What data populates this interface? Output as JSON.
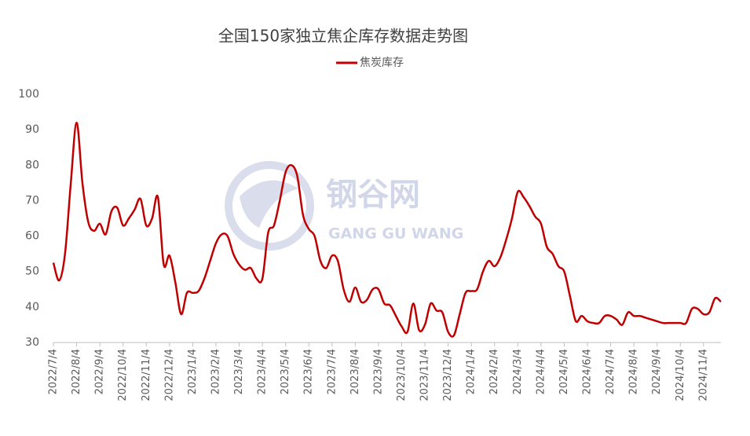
{
  "chart_data": {
    "type": "line",
    "title": "全国150家独立焦企库存数据走势图",
    "watermark": {
      "name": "钢谷网",
      "sub": "GANG GU WANG"
    },
    "categories": [
      "2022/7/4",
      null,
      null,
      null,
      "2022/8/4",
      null,
      null,
      null,
      "2022/9/4",
      null,
      null,
      null,
      "2022/10/4",
      null,
      null,
      null,
      "2022/11/4",
      null,
      null,
      null,
      "2022/12/4",
      null,
      null,
      null,
      "2023/1/4",
      null,
      null,
      null,
      "2023/2/4",
      null,
      null,
      null,
      "2023/3/4",
      null,
      null,
      null,
      "2023/4/4",
      null,
      null,
      null,
      "2023/5/4",
      null,
      null,
      null,
      "2023/6/4",
      null,
      null,
      null,
      "2023/7/4",
      null,
      null,
      null,
      "2023/8/4",
      null,
      null,
      null,
      "2023/9/4",
      null,
      null,
      null,
      "2023/10/4",
      null,
      null,
      null,
      "2023/11/4",
      null,
      null,
      null,
      "2023/12/4",
      null,
      null,
      null,
      "2024/1/4",
      null,
      null,
      null,
      "2024/2/4",
      null,
      null,
      null,
      "2024/3/4",
      null,
      null,
      null,
      "2024/4/4",
      null,
      null,
      null,
      "2024/5/4",
      null,
      null,
      null,
      "2024/6/4",
      null,
      null,
      null,
      "2024/7/4",
      null,
      null,
      null,
      "2024/8/4",
      null,
      null,
      null,
      "2024/9/4",
      null,
      null,
      null,
      "2024/10/4",
      null,
      null,
      null,
      "2024/11/4",
      null,
      null,
      null
    ],
    "series": [
      {
        "name": "焦炭库存",
        "color": "#c00000",
        "values": [
          52.5,
          47.5,
          55,
          75,
          92,
          75,
          64,
          61.5,
          63.5,
          60.5,
          67,
          68,
          63,
          65,
          67.5,
          70.5,
          63,
          65,
          71,
          52,
          54.5,
          47,
          38,
          44,
          44,
          44.5,
          48,
          53,
          58,
          60.5,
          60,
          55,
          52,
          50.5,
          51,
          48,
          48,
          61,
          63,
          70,
          78,
          80,
          77,
          66,
          62,
          60,
          53,
          51,
          54.5,
          53,
          45,
          41.5,
          45.5,
          41.5,
          42,
          45,
          45,
          41,
          40.5,
          37.5,
          34.5,
          33,
          41,
          33.5,
          35,
          41,
          39,
          38.5,
          33,
          32,
          38,
          44,
          44.5,
          45,
          50,
          53,
          51.5,
          54,
          59,
          65,
          72.5,
          71,
          68.5,
          65.5,
          63.5,
          57,
          55,
          51.5,
          50,
          43,
          36,
          37.5,
          36,
          35.5,
          35.5,
          37.5,
          37.5,
          36.5,
          35,
          38.5,
          37.5,
          37.5,
          37,
          36.5,
          36,
          35.5,
          35.5,
          35.5,
          35.5,
          35.5,
          39.5,
          39.5,
          38,
          38.5,
          42.5,
          41.5
        ]
      }
    ],
    "ylim": [
      30,
      100
    ],
    "yticks": [
      30,
      40,
      50,
      60,
      70,
      80,
      90,
      100
    ],
    "grid": false,
    "legend": "top"
  }
}
